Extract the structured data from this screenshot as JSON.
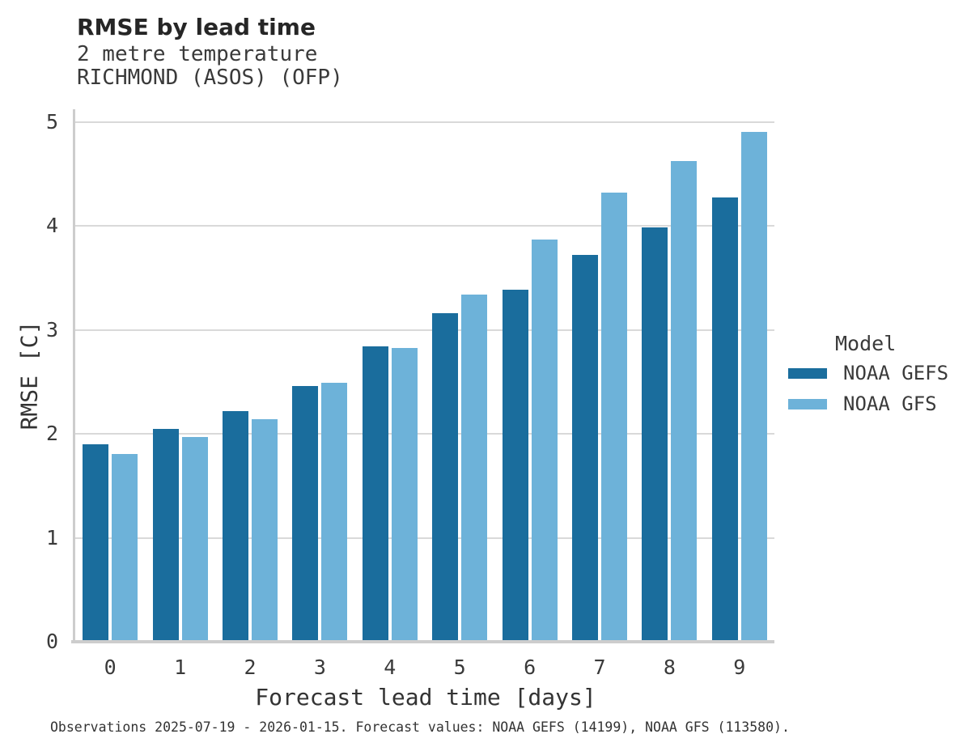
{
  "header": {
    "title": "RMSE by lead time",
    "subtitle_line1": "2 metre temperature",
    "subtitle_line2": "RICHMOND (ASOS) (OFP)"
  },
  "chart_data": {
    "type": "bar",
    "title": "RMSE by lead time",
    "subtitle": [
      "2 metre temperature",
      "RICHMOND (ASOS) (OFP)"
    ],
    "xlabel": "Forecast lead time [days]",
    "ylabel": "RMSE [C]",
    "categories": [
      "0",
      "1",
      "2",
      "3",
      "4",
      "5",
      "6",
      "7",
      "8",
      "9"
    ],
    "series": [
      {
        "name": "NOAA GEFS",
        "color": "#1a6d9d",
        "values": [
          1.9,
          2.05,
          2.22,
          2.46,
          2.84,
          3.16,
          3.39,
          3.72,
          3.99,
          4.28
        ]
      },
      {
        "name": "NOAA GFS",
        "color": "#6db2d9",
        "values": [
          1.81,
          1.97,
          2.14,
          2.49,
          2.83,
          3.34,
          3.87,
          4.32,
          4.63,
          4.91
        ]
      }
    ],
    "ylim": [
      0,
      5.125
    ],
    "yticks": [
      0,
      1,
      2,
      3,
      4,
      5
    ],
    "grid": "horizontal",
    "legend_title": "Model",
    "legend_position": "right",
    "caption": "Observations 2025-07-19 - 2026-01-15. Forecast values: NOAA GEFS (14199), NOAA GFS (113580)."
  },
  "style_colors": {
    "gefs_bar": "#1a6d9d",
    "gfs_bar": "#6db2d9",
    "gridline": "#d9d9d9",
    "spine": "#cdcdcd",
    "title_text": "#262626",
    "body_text": "#3a3a3a"
  }
}
